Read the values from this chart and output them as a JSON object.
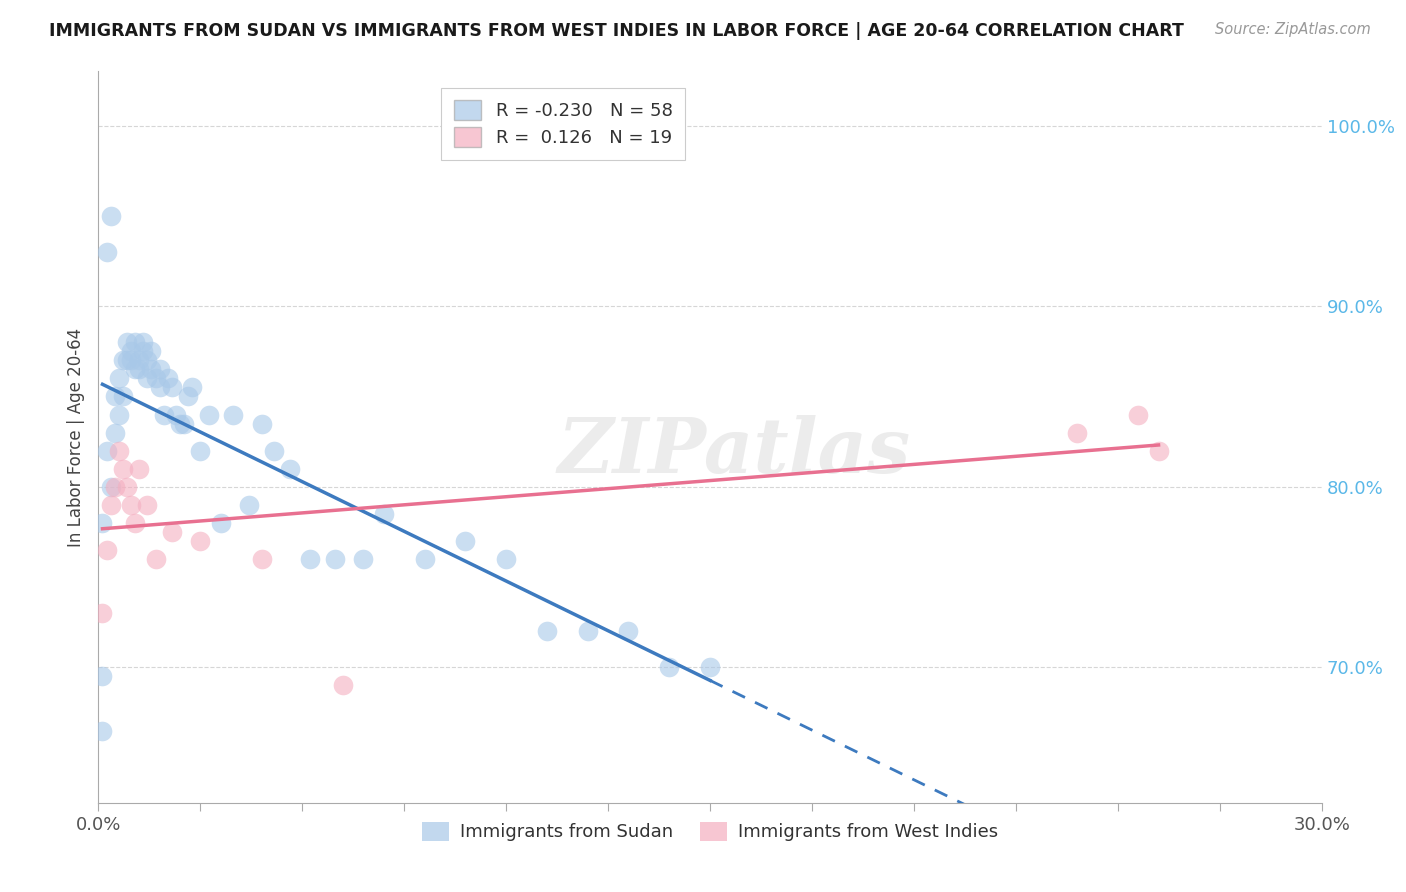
{
  "title": "IMMIGRANTS FROM SUDAN VS IMMIGRANTS FROM WEST INDIES IN LABOR FORCE | AGE 20-64 CORRELATION CHART",
  "source": "Source: ZipAtlas.com",
  "xlabel": "",
  "ylabel": "In Labor Force | Age 20-64",
  "xlim": [
    0.0,
    0.3
  ],
  "ylim": [
    0.625,
    1.03
  ],
  "yticks": [
    0.7,
    0.8,
    0.9,
    1.0
  ],
  "ytick_labels": [
    "70.0%",
    "80.0%",
    "90.0%",
    "100.0%"
  ],
  "xticks": [
    0.0,
    0.025,
    0.05,
    0.075,
    0.1,
    0.125,
    0.15,
    0.175,
    0.2,
    0.225,
    0.25,
    0.275,
    0.3
  ],
  "xtick_labels": [
    "0.0%",
    "",
    "",
    "",
    "",
    "",
    "",
    "",
    "",
    "",
    "",
    "",
    "30.0%"
  ],
  "sudan_R": -0.23,
  "sudan_N": 58,
  "westindies_R": 0.126,
  "westindies_N": 19,
  "sudan_color": "#a8c8e8",
  "westindies_color": "#f4afc0",
  "sudan_line_color": "#3d7abf",
  "westindies_line_color": "#e87090",
  "watermark": "ZIPatlas",
  "sudan_points_x": [
    0.001,
    0.002,
    0.002,
    0.003,
    0.003,
    0.004,
    0.004,
    0.005,
    0.005,
    0.006,
    0.006,
    0.007,
    0.007,
    0.008,
    0.008,
    0.009,
    0.009,
    0.01,
    0.01,
    0.011,
    0.011,
    0.012,
    0.012,
    0.013,
    0.013,
    0.014,
    0.015,
    0.015,
    0.016,
    0.017,
    0.018,
    0.019,
    0.02,
    0.021,
    0.022,
    0.023,
    0.025,
    0.027,
    0.03,
    0.033,
    0.037,
    0.04,
    0.043,
    0.047,
    0.052,
    0.058,
    0.065,
    0.07,
    0.08,
    0.09,
    0.1,
    0.11,
    0.12,
    0.13,
    0.14,
    0.15,
    0.001,
    0.001
  ],
  "sudan_points_y": [
    0.695,
    0.82,
    0.93,
    0.95,
    0.8,
    0.83,
    0.85,
    0.84,
    0.86,
    0.85,
    0.87,
    0.87,
    0.88,
    0.87,
    0.875,
    0.88,
    0.865,
    0.87,
    0.865,
    0.88,
    0.875,
    0.87,
    0.86,
    0.865,
    0.875,
    0.86,
    0.865,
    0.855,
    0.84,
    0.86,
    0.855,
    0.84,
    0.835,
    0.835,
    0.85,
    0.855,
    0.82,
    0.84,
    0.78,
    0.84,
    0.79,
    0.835,
    0.82,
    0.81,
    0.76,
    0.76,
    0.76,
    0.785,
    0.76,
    0.77,
    0.76,
    0.72,
    0.72,
    0.72,
    0.7,
    0.7,
    0.78,
    0.665
  ],
  "westindies_points_x": [
    0.001,
    0.002,
    0.003,
    0.004,
    0.005,
    0.006,
    0.007,
    0.008,
    0.009,
    0.01,
    0.012,
    0.014,
    0.018,
    0.025,
    0.04,
    0.06,
    0.24,
    0.255,
    0.26
  ],
  "westindies_points_y": [
    0.73,
    0.765,
    0.79,
    0.8,
    0.82,
    0.81,
    0.8,
    0.79,
    0.78,
    0.81,
    0.79,
    0.76,
    0.775,
    0.77,
    0.76,
    0.69,
    0.83,
    0.84,
    0.82
  ]
}
